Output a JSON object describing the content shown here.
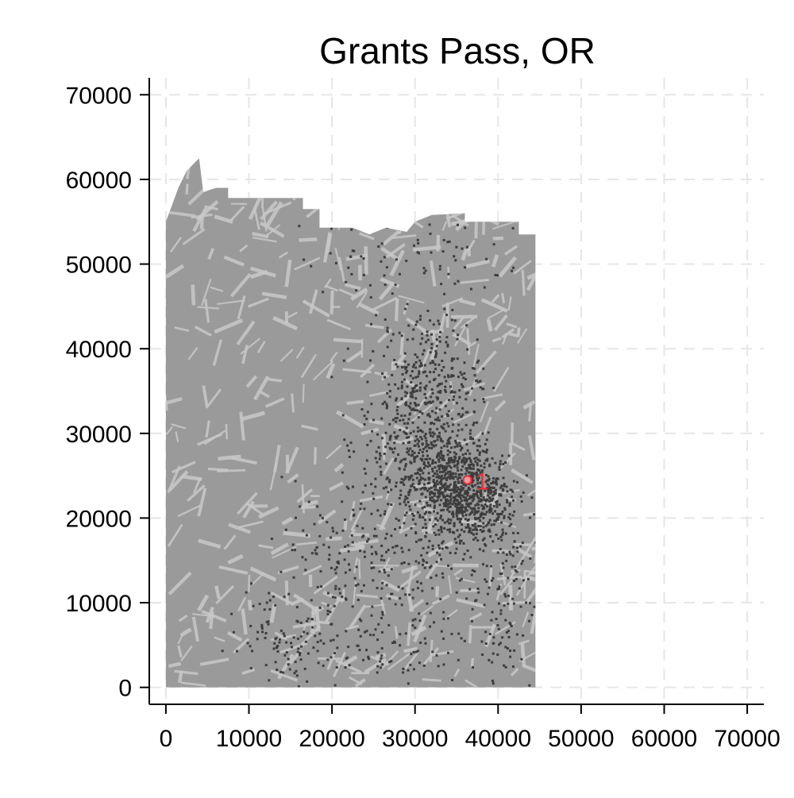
{
  "chart_data": {
    "type": "scatter",
    "title": "Grants Pass, OR",
    "xlabel": "",
    "ylabel": "",
    "xlim": [
      -2000,
      72000
    ],
    "ylim": [
      -2000,
      72000
    ],
    "xticks": [
      0,
      10000,
      20000,
      30000,
      40000,
      50000,
      60000,
      70000
    ],
    "yticks": [
      0,
      10000,
      20000,
      30000,
      40000,
      50000,
      60000,
      70000
    ],
    "grid": true,
    "background_raster": {
      "description_shape_outline": [
        [
          0,
          0
        ],
        [
          0,
          55000
        ],
        [
          1500,
          59000
        ],
        [
          2500,
          61000
        ],
        [
          4000,
          62500
        ],
        [
          4500,
          58500
        ],
        [
          6000,
          59000
        ],
        [
          7500,
          59000
        ],
        [
          7500,
          57800
        ],
        [
          16500,
          57800
        ],
        [
          16500,
          56500
        ],
        [
          18500,
          56500
        ],
        [
          18500,
          54300
        ],
        [
          22500,
          54300
        ],
        [
          24500,
          53500
        ],
        [
          26500,
          54300
        ],
        [
          29000,
          53800
        ],
        [
          30000,
          55000
        ],
        [
          32000,
          55800
        ],
        [
          36000,
          56000
        ],
        [
          36000,
          55000
        ],
        [
          42500,
          55000
        ],
        [
          42500,
          53500
        ],
        [
          44500,
          53500
        ],
        [
          44500,
          0
        ]
      ],
      "base_color": "#9a9a9a",
      "light_color": "#c8c8c8"
    },
    "series": [
      {
        "label_color": "#3d3d3d",
        "marker": "dot",
        "clusters": [
          {
            "cx": 34500,
            "cy": 23500,
            "sx": 2600,
            "sy": 3200,
            "n": 520
          },
          {
            "cx": 30500,
            "cy": 29000,
            "sx": 3500,
            "sy": 6000,
            "n": 520
          },
          {
            "cx": 37500,
            "cy": 22500,
            "sx": 2500,
            "sy": 2500,
            "n": 280
          },
          {
            "cx": 32000,
            "cy": 37500,
            "sx": 3000,
            "sy": 3500,
            "n": 140
          },
          {
            "cx": 40000,
            "cy": 12000,
            "sx": 2200,
            "sy": 7000,
            "n": 160
          },
          {
            "cx": 25000,
            "cy": 5000,
            "sx": 6000,
            "sy": 2500,
            "n": 110
          },
          {
            "cx": 14500,
            "cy": 6000,
            "sx": 3500,
            "sy": 3500,
            "n": 90
          },
          {
            "cx": 30000,
            "cy": 51000,
            "sx": 7000,
            "sy": 2500,
            "n": 80
          },
          {
            "cx": 26000,
            "cy": 14000,
            "sx": 4500,
            "sy": 4000,
            "n": 120
          },
          {
            "cx": 20000,
            "cy": 16000,
            "sx": 3000,
            "sy": 4000,
            "n": 60
          }
        ]
      }
    ],
    "highlight_point": {
      "x": 36300,
      "y": 24500,
      "label": "1",
      "color": "#e8323c"
    }
  }
}
